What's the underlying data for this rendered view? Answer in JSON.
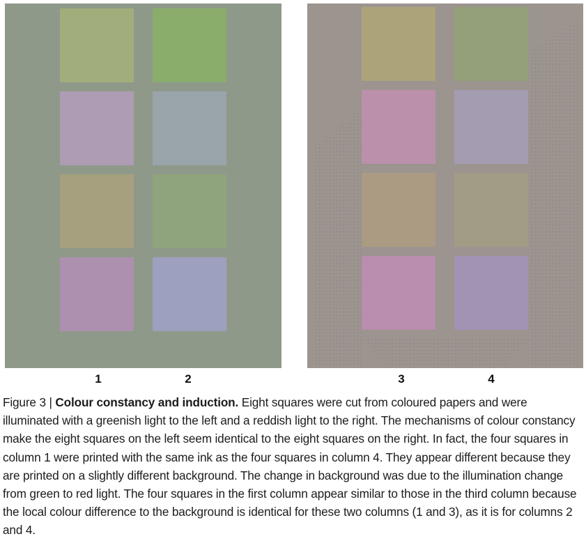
{
  "figure": {
    "columns": [
      "1",
      "2",
      "3",
      "4"
    ],
    "left_panel": {
      "background": "#8f998a",
      "squares": [
        {
          "color": "#a2ad7c"
        },
        {
          "color": "#8aad6c"
        },
        {
          "color": "#ad9cb3"
        },
        {
          "color": "#9aa4ab"
        },
        {
          "color": "#a6a07e"
        },
        {
          "color": "#8fa47c"
        },
        {
          "color": "#ad90b0"
        },
        {
          "color": "#9ea0bf"
        }
      ]
    },
    "right_panel": {
      "background": "#9c948f",
      "squares": [
        {
          "color": "#aca37a"
        },
        {
          "color": "#94a07a"
        },
        {
          "color": "#bb90ab"
        },
        {
          "color": "#a49cb0"
        },
        {
          "color": "#ab9b82"
        },
        {
          "color": "#a19c86"
        },
        {
          "color": "#b98eaf"
        },
        {
          "color": "#a193b3"
        }
      ]
    }
  },
  "caption": {
    "prefix": "Figure 3 | ",
    "bold": "Colour constancy and induction.",
    "text": " Eight squares were cut from coloured papers and were illuminated with a greenish light to the left and a reddish light to the right. The mechanisms of colour constancy make the eight squares on the left seem identical to the eight squares on the right. In fact, the four squares in column 1 were printed with the same ink as the four squares in column 4. They appear different because they are printed on a slightly different background. The change in background was due to the illumination change from green to red light. The four squares in the first column appear similar to those in the third column because the local colour difference to the background is identical for these two columns (1 and 3), as it is for columns 2 and 4."
  }
}
